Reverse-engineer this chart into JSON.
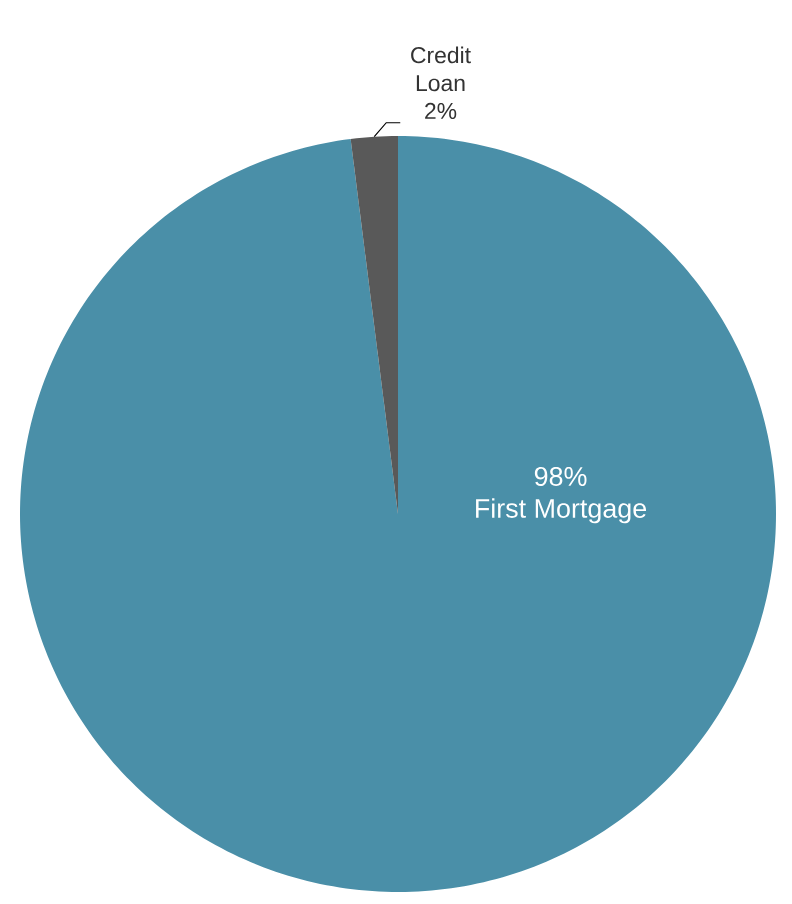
{
  "chart_data": {
    "type": "pie",
    "categories": [
      "First Mortgage",
      "Credit Loan"
    ],
    "values": [
      98,
      2
    ],
    "value_labels": [
      "98%",
      "2%"
    ],
    "colors": [
      "#4a8fa8",
      "#595959"
    ]
  }
}
